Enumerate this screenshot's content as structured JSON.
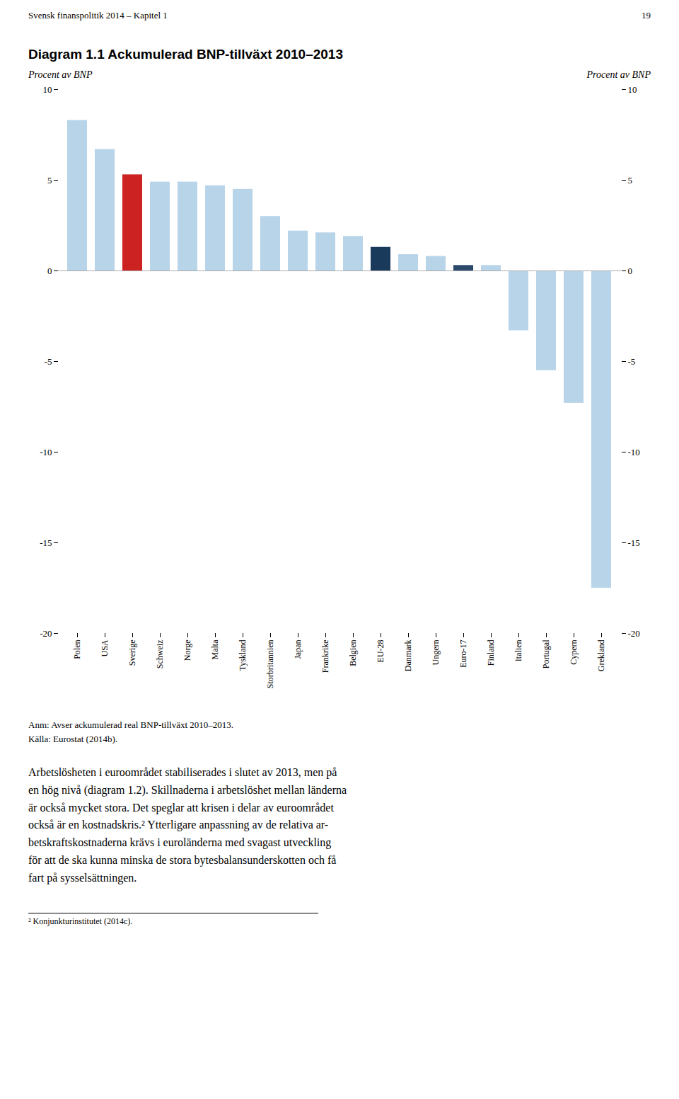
{
  "chart_data": {
    "type": "bar",
    "title": "Diagram 1.1 Ackumulerad BNP-tillväxt 2010–2013",
    "ylabel": "Procent av BNP",
    "y2label": "Procent av BNP",
    "header": "Svensk finanspolitik 2014 – Kapitel 1",
    "page_number": "19",
    "categories": [
      "Polen",
      "USA",
      "Sverige",
      "Schweiz",
      "Norge",
      "Malta",
      "Tyskland",
      "Storbritannien",
      "Japan",
      "Frankrike",
      "Belgien",
      "EU-28",
      "Danmark",
      "Ungern",
      "Euro-17",
      "Finland",
      "Italien",
      "Portugal",
      "Cypern",
      "Grekland"
    ],
    "values": [
      8.3,
      6.7,
      5.3,
      4.9,
      4.9,
      4.7,
      4.5,
      3.0,
      2.2,
      2.1,
      1.9,
      1.3,
      0.9,
      0.8,
      0.3,
      0.3,
      -3.3,
      -5.5,
      -7.3,
      -17.5
    ],
    "colors": [
      "#b8d4e8",
      "#b8d4e8",
      "#cc2222",
      "#b8d4e8",
      "#b8d4e8",
      "#b8d4e8",
      "#b8d4e8",
      "#b8d4e8",
      "#b8d4e8",
      "#b8d4e8",
      "#b8d4e8",
      "#1a3a5c",
      "#b8d4e8",
      "#b8d4e8",
      "#2b4a6b",
      "#b8d4e8",
      "#b8d4e8",
      "#b8d4e8",
      "#b8d4e8",
      "#b8d4e8"
    ],
    "ylim": [
      -20,
      10
    ],
    "yticks": [
      -20,
      -15,
      -10,
      -5,
      0,
      5,
      10
    ],
    "y2lim": [
      -20,
      10
    ],
    "y2ticks": [
      -20,
      -15,
      -10,
      -5,
      0,
      5,
      10
    ],
    "grid": false,
    "annotations": [
      "Anm: Avser ackumulerad real BNP-tillväxt 2010–2013.",
      "Källa: Eurostat (2014b)."
    ],
    "body_text": "Arbetslösheten i euroområdet stabiliserades i slutet av 2013, men på\nen hög nivå (diagram 1.2). Skillnaderna i arbetslöshet mellan länderna\när också mycket stora. Det speglar att krisen i delar av euroområdet\nockså är en kostnadskris.² Ytterligare anpassning av de relativa ar-\nbetskraftskostnaderna krävs i euroländerna med svagast utveckling\nför att de ska kunna minska de stora bytesbalansunderskotten och få\nfart på sysselsättningen.",
    "footnote": "² Konjunkturinstitutet (2014c)."
  }
}
